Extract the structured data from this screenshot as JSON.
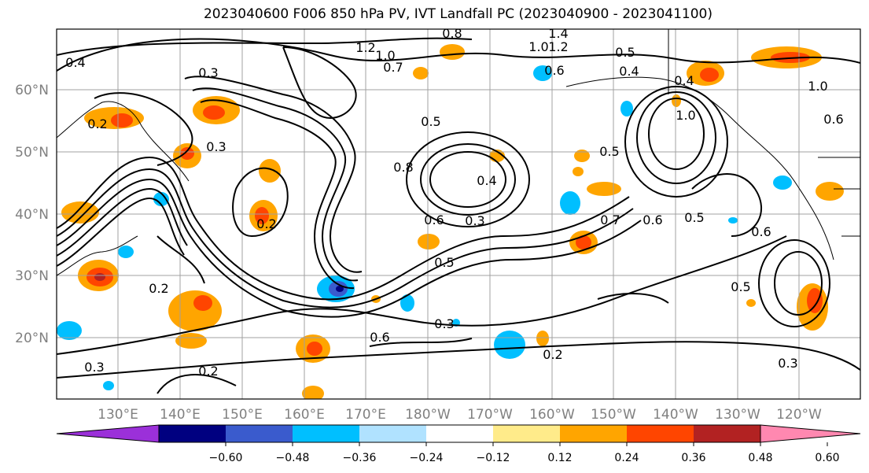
{
  "title": "2023040600 F006 850 hPa PV, IVT Landfall PC (2023040900 - 2023041100)",
  "lat_labels": [
    "60°N",
    "50°N",
    "40°N",
    "30°N",
    "20°N"
  ],
  "lon_labels": [
    "130°E",
    "140°E",
    "150°E",
    "160°E",
    "170°E",
    "180°W",
    "170°W",
    "160°W",
    "150°W",
    "140°W",
    "130°W",
    "120°W"
  ],
  "contour_labels": [
    "0.8",
    "1.4",
    "1.2",
    "1.0",
    "1.2",
    "1.0",
    "0.4",
    "0.3",
    "0.7",
    "0.5",
    "0.4",
    "0.6",
    "0.4",
    "1.0",
    "0.2",
    "0.3",
    "0.5",
    "0.8",
    "0.4",
    "0.6",
    "0.3",
    "0.5",
    "0.7",
    "0.6",
    "0.5",
    "0.2",
    "0.5",
    "0.6",
    "0.5",
    "0.3",
    "0.2",
    "0.2",
    "0.3",
    "0.2",
    "0.3",
    "0.6",
    "1.0",
    "0.6"
  ],
  "colorbar": {
    "ticks": [
      "−0.60",
      "−0.48",
      "−0.36",
      "−0.24",
      "−0.12",
      "0.12",
      "0.24",
      "0.36",
      "0.48",
      "0.60"
    ],
    "colors": [
      "#9b30d9",
      "#000080",
      "#3a5bcd",
      "#00bfff",
      "#b0e2ff",
      "#ffffff",
      "#ffeb8a",
      "#ffa500",
      "#ff4500",
      "#b22222",
      "#ff88b0"
    ]
  }
}
